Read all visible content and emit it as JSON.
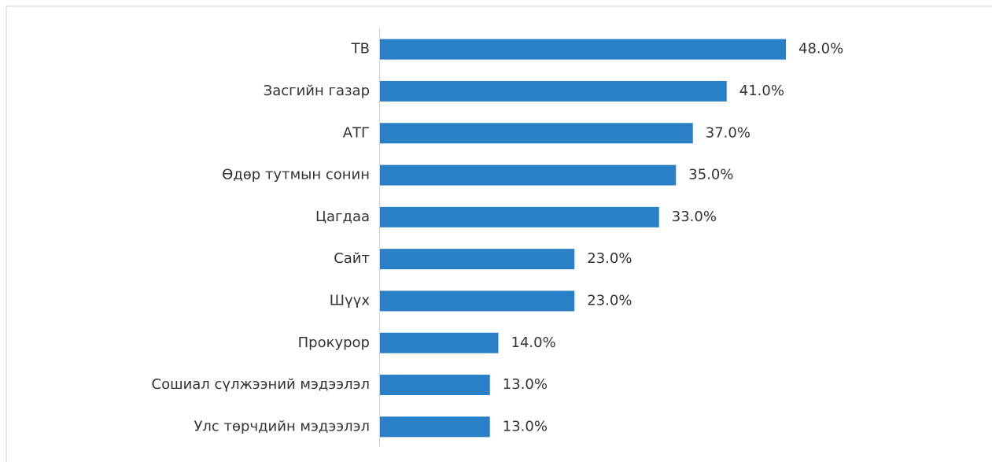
{
  "chart_data": {
    "type": "bar",
    "orientation": "horizontal",
    "categories": [
      "ТВ",
      "Засгийн газар",
      "АТГ",
      "Өдөр тутмын сонин",
      "Цагдаа",
      "Сайт",
      "Шүүх",
      "Прокурор",
      "Сошиал сүлжээний мэдээлэл",
      "Улс төрчдийн мэдээлэл"
    ],
    "values": [
      48,
      41,
      37,
      35,
      33,
      23,
      23,
      14,
      13,
      13
    ],
    "value_labels": [
      "48.0%",
      "41.0%",
      "37.0%",
      "35.0%",
      "33.0%",
      "23.0%",
      "23.0%",
      "14.0%",
      "13.0%",
      "13.0%"
    ],
    "color": "#2a80c6"
  }
}
